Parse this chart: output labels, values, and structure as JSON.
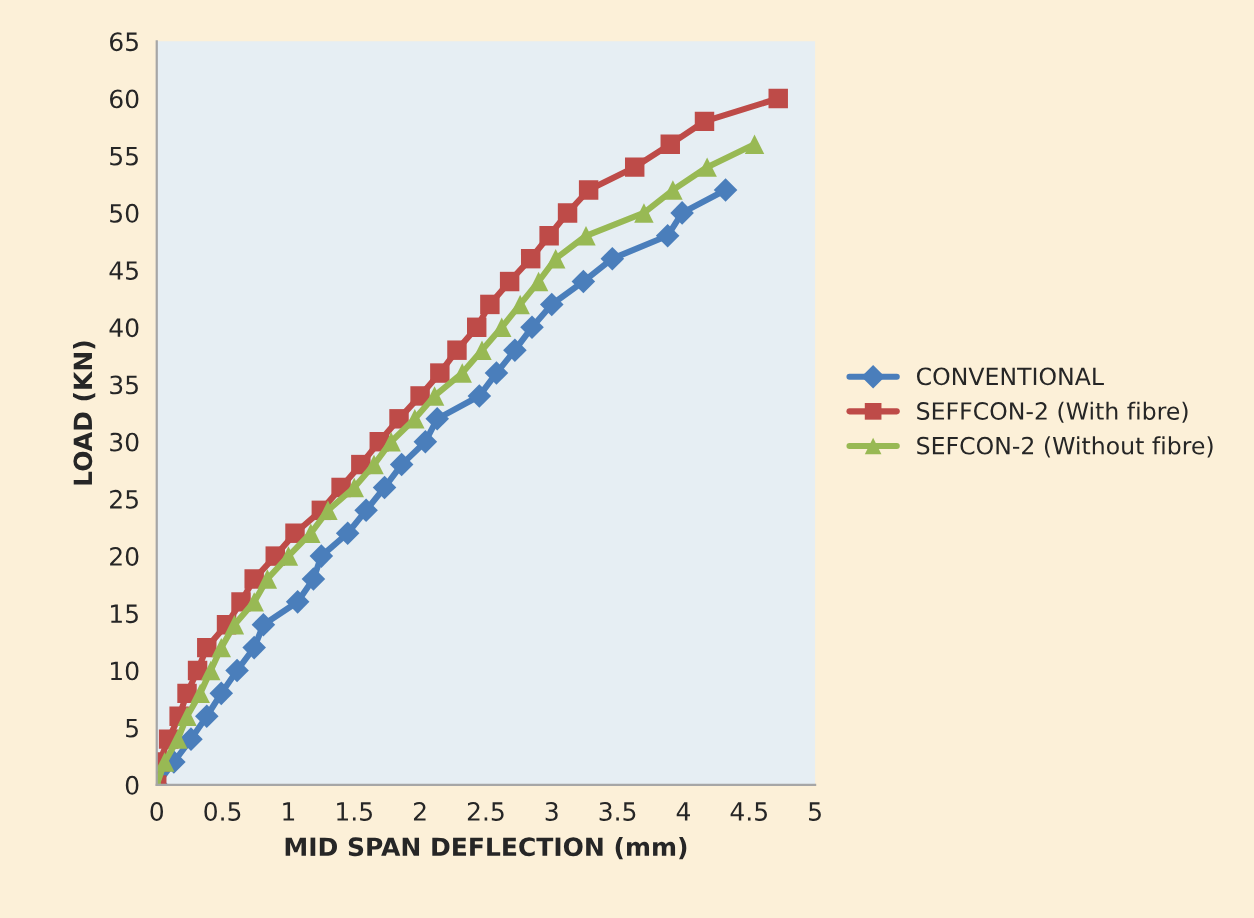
{
  "chart_data": {
    "type": "line",
    "xlabel": "MID SPAN DEFLECTION (mm)",
    "ylabel": "LOAD (KN)",
    "xlim": [
      0,
      5
    ],
    "xticks": [
      0,
      0.5,
      1,
      1.5,
      2,
      2.5,
      3,
      3.5,
      4,
      4.5,
      5
    ],
    "ylim": [
      0,
      65
    ],
    "yticks": [
      0,
      5,
      10,
      15,
      20,
      25,
      30,
      35,
      40,
      45,
      50,
      55,
      60,
      65
    ],
    "grid": false,
    "legend": "right",
    "series": [
      {
        "name": "CONVENTIONAL",
        "color": "#4a7ebb",
        "marker": "diamond",
        "x": [
          0,
          0.13,
          0.26,
          0.38,
          0.49,
          0.61,
          0.74,
          0.81,
          1.07,
          1.19,
          1.25,
          1.45,
          1.59,
          1.73,
          1.86,
          2.04,
          2.13,
          2.45,
          2.58,
          2.72,
          2.85,
          3.0,
          3.24,
          3.46,
          3.88,
          3.99,
          4.32
        ],
        "values": [
          0,
          2,
          4,
          6,
          8,
          10,
          12,
          14,
          16,
          18,
          20,
          22,
          24,
          26,
          28,
          30,
          32,
          34,
          36,
          38,
          40,
          42,
          44,
          46,
          48,
          50,
          52
        ]
      },
      {
        "name": "SEFFCON-2 (With fibre)",
        "color": "#be4b48",
        "marker": "square",
        "x": [
          0,
          0.02,
          0.09,
          0.17,
          0.23,
          0.31,
          0.38,
          0.53,
          0.64,
          0.74,
          0.9,
          1.05,
          1.25,
          1.4,
          1.55,
          1.69,
          1.84,
          2.0,
          2.15,
          2.28,
          2.43,
          2.53,
          2.68,
          2.84,
          2.98,
          3.12,
          3.28,
          3.63,
          3.9,
          4.16,
          4.72
        ],
        "values": [
          0,
          2,
          4,
          6,
          8,
          10,
          12,
          14,
          16,
          18,
          20,
          22,
          24,
          26,
          28,
          30,
          32,
          34,
          36,
          38,
          40,
          42,
          44,
          46,
          48,
          50,
          52,
          54,
          56,
          58,
          60
        ]
      },
      {
        "name": "SEFCON-2 (Without fibre)",
        "color": "#98b954",
        "marker": "triangle",
        "x": [
          0,
          0.06,
          0.16,
          0.23,
          0.33,
          0.41,
          0.49,
          0.59,
          0.74,
          0.84,
          1.0,
          1.17,
          1.3,
          1.5,
          1.65,
          1.78,
          1.96,
          2.11,
          2.32,
          2.47,
          2.62,
          2.76,
          2.9,
          3.03,
          3.26,
          3.7,
          3.92,
          4.18,
          4.54
        ],
        "values": [
          0,
          2,
          4,
          6,
          8,
          10,
          12,
          14,
          16,
          18,
          20,
          22,
          24,
          26,
          28,
          30,
          32,
          34,
          36,
          38,
          40,
          42,
          44,
          46,
          48,
          50,
          52,
          54,
          56
        ]
      }
    ]
  }
}
